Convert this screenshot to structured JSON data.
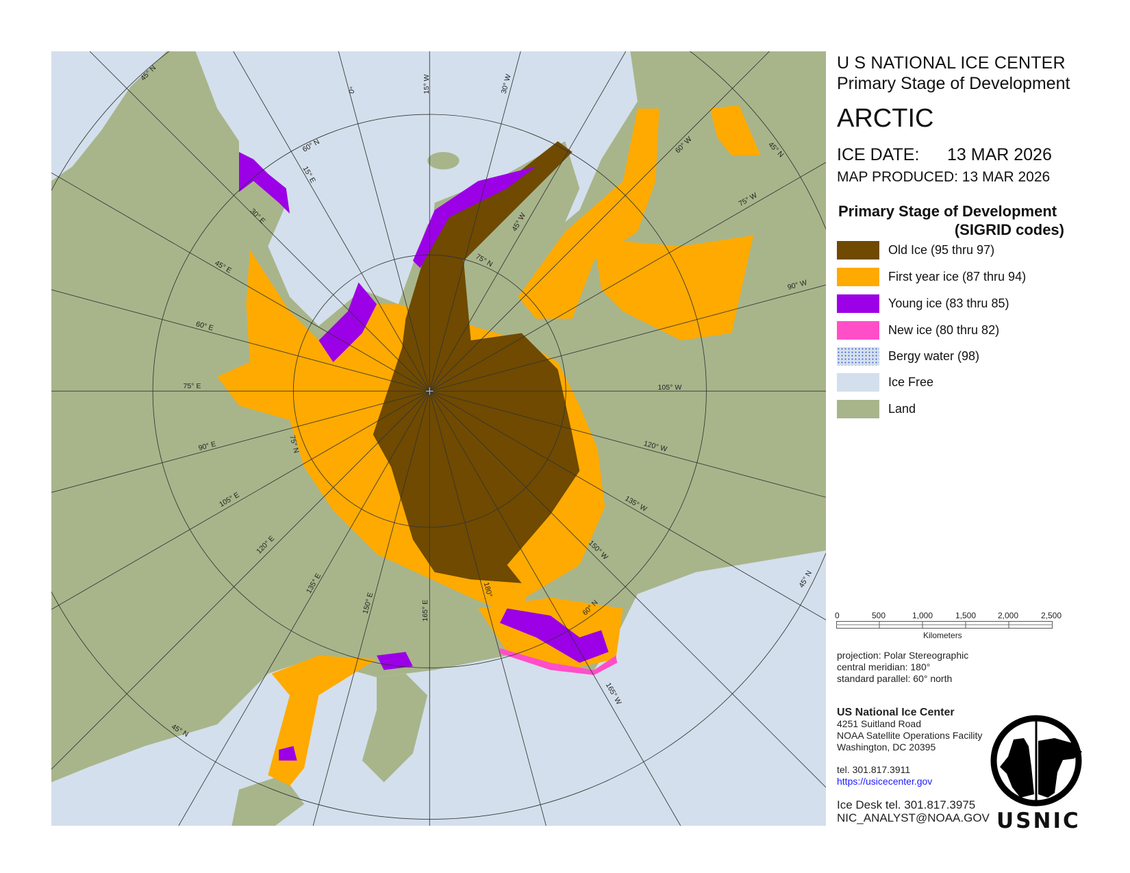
{
  "header": {
    "org": "U S NATIONAL ICE CENTER",
    "product": "Primary Stage of Development",
    "region": "ARCTIC",
    "ice_date_label": "ICE DATE:",
    "ice_date": "13 MAR 2026",
    "map_produced": "MAP PRODUCED:  13 MAR 2026"
  },
  "legend": {
    "title_line1": "Primary Stage of Development",
    "title_line2": "(SIGRID codes)",
    "items": [
      {
        "label": "Old Ice (95 thru 97)",
        "color": "#6f4a00"
      },
      {
        "label": "First year ice (87 thru 94)",
        "color": "#ffaa00"
      },
      {
        "label": "Young ice  (83 thru 85)",
        "color": "#9b00e6"
      },
      {
        "label": "New ice (80 thru 82)",
        "color": "#ff4fc8"
      },
      {
        "label": "Bergy water (98)",
        "color": "#d3dfec"
      },
      {
        "label": "Ice Free",
        "color": "#d3dfec"
      },
      {
        "label": "Land",
        "color": "#a8b58b"
      }
    ]
  },
  "scale_bar": {
    "ticks": [
      "0",
      "500",
      "1,000",
      "1,500",
      "2,000",
      "2,500"
    ],
    "unit": "Kilometers"
  },
  "projection": {
    "line1": "projection: Polar Stereographic",
    "line2": "central meridian: 180°",
    "line3": "standard parallel:  60° north"
  },
  "contact": {
    "name": "US National Ice Center",
    "address1": "4251 Suitland Road",
    "address2": "NOAA Satellite Operations Facility",
    "address3": "Washington, DC  20395",
    "tel": "tel. 301.817.3911",
    "url": "https://usicecenter.gov",
    "ice_desk": "Ice Desk tel. 301.817.3975",
    "email": "NIC_ANALYST@NOAA.GOV"
  },
  "logo": {
    "text": "USNIC"
  },
  "graticule_labels": [
    "45° N",
    "0°",
    "15° W",
    "30° W",
    "60° N",
    "15° E",
    "30° E",
    "45° E",
    "60° E",
    "75° E",
    "90° E",
    "105° E",
    "120° E",
    "135° E",
    "150° E",
    "165° E",
    "180°",
    "60° N",
    "165° W",
    "150° W",
    "135° W",
    "120° W",
    "105° W",
    "90° W",
    "75° W",
    "60° W",
    "45° W",
    "75° N",
    "75° N",
    "45° N",
    "45° N",
    "45° N"
  ],
  "colors": {
    "land": "#a8b58b",
    "water": "#d3dfec",
    "grid": "#333333",
    "link": "#1a1aff"
  }
}
